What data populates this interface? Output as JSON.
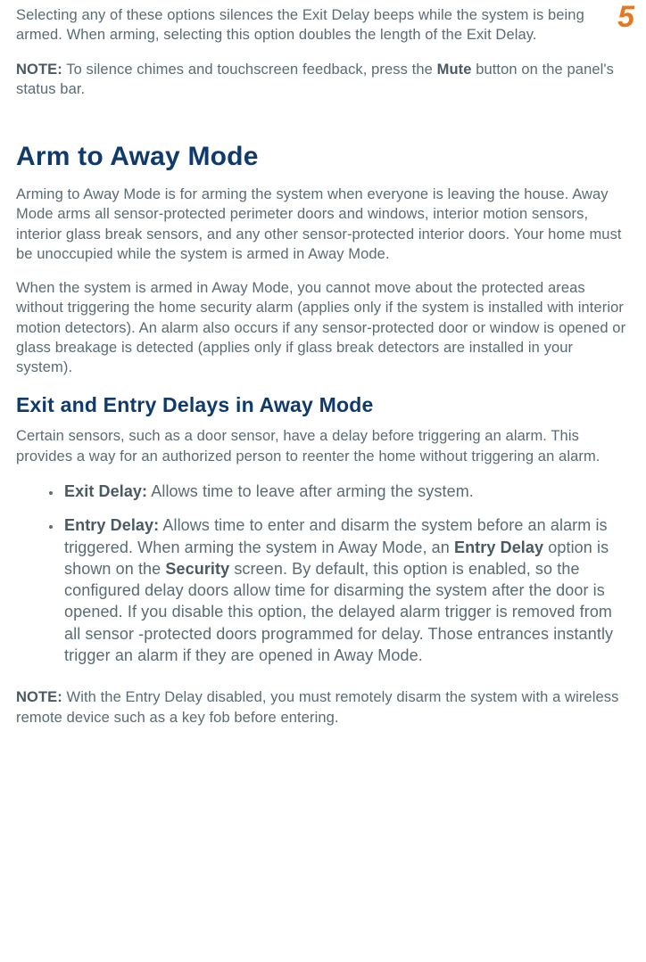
{
  "page_number": "5",
  "colors": {
    "body_text": "#5a6b73",
    "strong_text": "#4a5a62",
    "heading": "#0f3a6b",
    "page_number": "#e87722",
    "background": "#ffffff"
  },
  "typography": {
    "body_family": "Segoe UI / Helvetica Neue / Arial",
    "heading_family": "Verdana",
    "body_size_pt": 12,
    "list_size_pt": 13.5,
    "h1_size_pt": 22,
    "h2_size_pt": 17,
    "page_number_size_pt": 25
  },
  "intro": {
    "p1": "Selecting any of these options silences the Exit Delay beeps while the system is being armed. When arming, selecting this option doubles the length of the Exit Delay.",
    "note_label": "NOTE:",
    "note_text": " To silence chimes and touchscreen feedback, press the ",
    "note_strong": "Mute",
    "note_tail": " button on the panel's status bar."
  },
  "away": {
    "h1": "Arm to Away Mode",
    "p1": "Arming to Away Mode is for arming the system when everyone is leaving the house. Away Mode arms all sensor-protected perimeter doors and windows, interior motion sensors, interior glass break sensors, and any other sensor-protected interior doors. Your home must be unoccupied while the system is armed in Away Mode.",
    "p2": "When the system is armed in Away Mode, you cannot move about the protected areas without triggering the home security alarm (applies only if the system is installed with interior motion detectors). An alarm also occurs if any sensor-protected door or window is opened or glass breakage is detected (applies only if glass break detectors are installed in your system)."
  },
  "delays": {
    "h2": "Exit and Entry Delays in Away Mode",
    "intro": "Certain sensors, such as a door sensor, have a delay before triggering an alarm. This provides a way for an authorized person to reenter the home without triggering an alarm.",
    "items": [
      {
        "label": "Exit Delay:",
        "text": " Allows time to leave after arming the system."
      },
      {
        "label": "Entry Delay:",
        "text_a": " Allows time to enter and disarm the system before an alarm is triggered. When arming the system in Away Mode, an ",
        "strong_a": "Entry Delay",
        "text_b": " option is shown on the ",
        "strong_b": "Security",
        "text_c": " screen. By default, this option is enabled, so the configured delay doors allow time for disarming the system after the door is opened. If you disable this option, the delayed alarm trigger is removed from all sensor ‑protected doors programmed for delay. Those entrances instantly trigger an alarm if they are opened in Away Mode."
      }
    ],
    "note_label": "NOTE:",
    "note_text": " With the Entry Delay disabled, you must remotely disarm the system with a wireless remote device such as a key fob before entering."
  }
}
